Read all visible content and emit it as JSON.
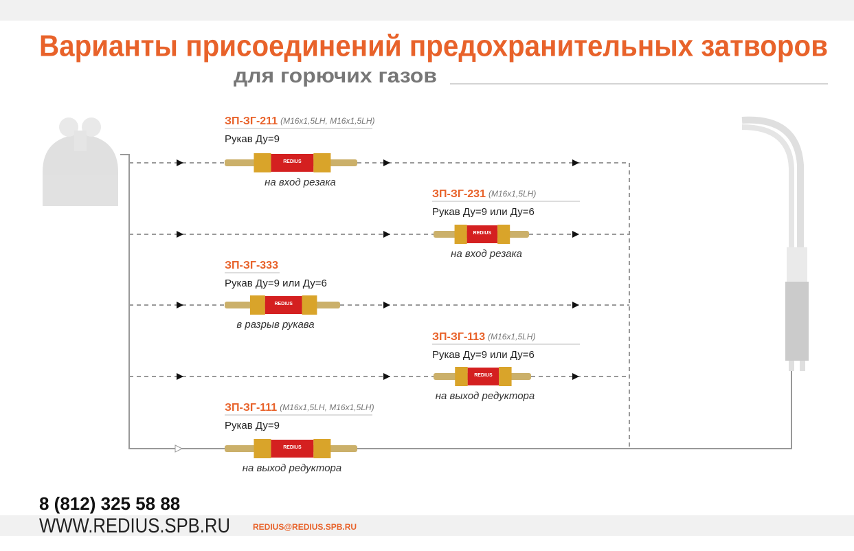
{
  "header": {
    "title": "Варианты присоединений предохранительных затворов",
    "subtitle": "для горючих газов"
  },
  "brand": "REDIUS",
  "variants": [
    {
      "model": "ЗП-ЗГ-211",
      "spec": "(M16x1,5LH, M16x1,5LH)",
      "hose": "Рукав Ду=9",
      "caption": "на вход резака"
    },
    {
      "model": "ЗП-ЗГ-231",
      "spec": "(M16x1,5LH)",
      "hose": "Рукав Ду=9 или Ду=6",
      "caption": "на вход резака"
    },
    {
      "model": "ЗП-ЗГ-333",
      "hose": "Рукав Ду=9 или Ду=6",
      "caption": "в разрыв рукава"
    },
    {
      "model": "ЗП-ЗГ-113",
      "spec": "(M16x1,5LH)",
      "hose": "Рукав Ду=9 или Ду=6",
      "caption": "на выход редуктора"
    },
    {
      "model": "ЗП-ЗГ-111",
      "spec": "(M16x1,5LH, M16x1,5LH)",
      "hose": "Рукав Ду=9",
      "caption": "на выход редуктора"
    }
  ],
  "footer": {
    "phone": "8 (812) 325 58 88",
    "site": "WWW.REDIUS.SPB.RU",
    "email": "REDIUS@REDIUS.SPB.RU"
  }
}
